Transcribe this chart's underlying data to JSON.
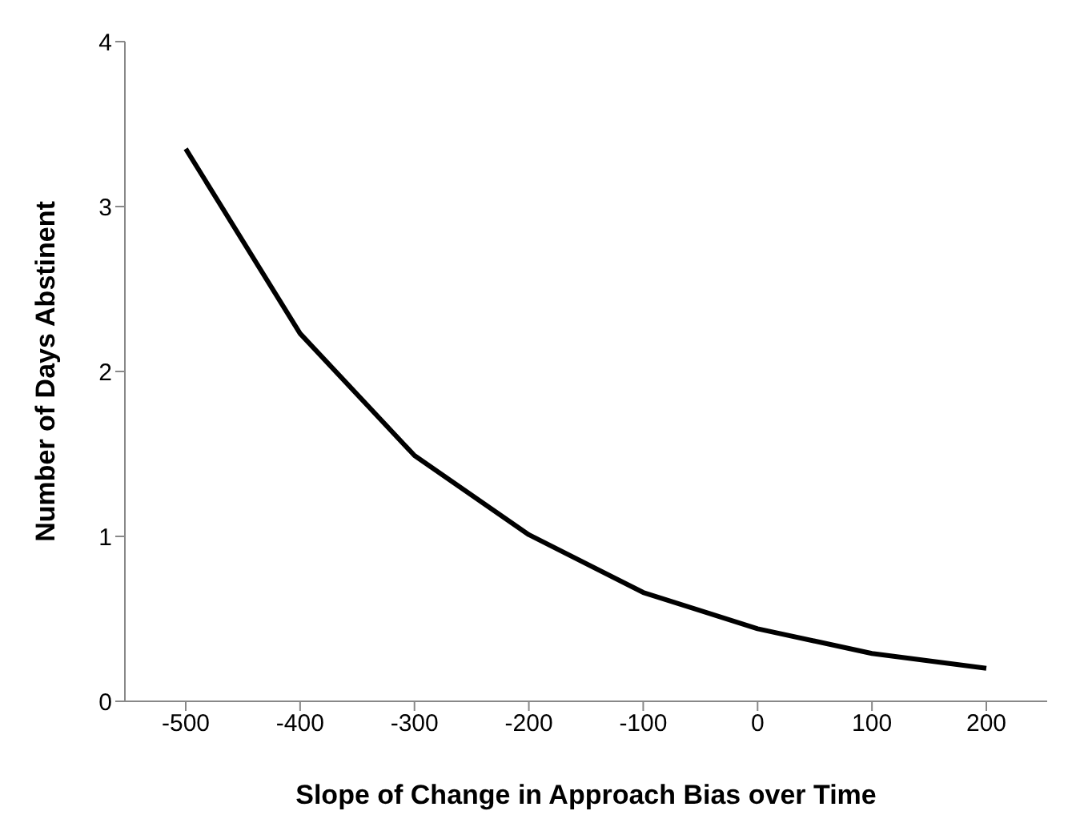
{
  "chart_data": {
    "type": "line",
    "xlabel": "Slope of Change in Approach Bias over Time",
    "ylabel": "Number of Days Abstinent",
    "categories": [
      "-500",
      "-400",
      "-300",
      "-200",
      "-100",
      "0",
      "100",
      "200"
    ],
    "series": [
      {
        "color": "#000000",
        "values": [
          3.35,
          2.23,
          1.49,
          1.01,
          0.66,
          0.44,
          0.29,
          0.2
        ]
      }
    ],
    "ylim": [
      0,
      4
    ],
    "yticks": [
      0,
      1,
      2,
      3,
      4
    ],
    "grid": false,
    "legend": false,
    "marker": "none",
    "line_style": "solid"
  }
}
